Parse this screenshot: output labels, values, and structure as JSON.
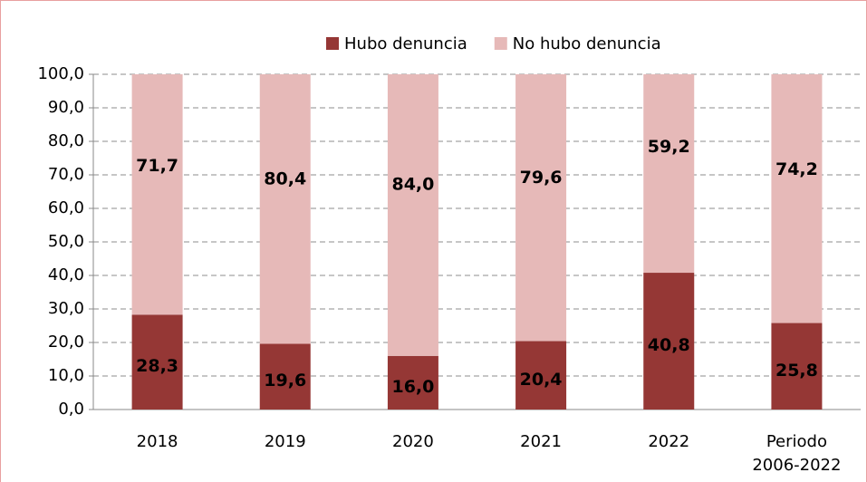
{
  "chart_data": {
    "type": "stacked_bar",
    "categories": [
      "2018",
      "2019",
      "2020",
      "2021",
      "2022",
      "Periodo 2006-2022"
    ],
    "series": [
      {
        "name": "Hubo denuncia",
        "color": "#953735",
        "values": [
          28.3,
          19.6,
          16.0,
          20.4,
          40.8,
          25.8
        ],
        "value_labels": [
          "28,3",
          "19,6",
          "16,0",
          "20,4",
          "40,8",
          "25,8"
        ],
        "label_color": "#ffffff"
      },
      {
        "name": "No hubo denuncia",
        "color": "#e6b9b8",
        "values": [
          71.7,
          80.4,
          84.0,
          79.6,
          59.2,
          74.2
        ],
        "value_labels": [
          "71,7",
          "80,4",
          "84,0",
          "79,6",
          "59,2",
          "74,2"
        ],
        "label_color": "#000000"
      }
    ],
    "ylim": [
      0,
      100
    ],
    "yticks": [
      {
        "value": 0,
        "label": "0,0"
      },
      {
        "value": 10,
        "label": "10,0"
      },
      {
        "value": 20,
        "label": "20,0"
      },
      {
        "value": 30,
        "label": "30,0"
      },
      {
        "value": 40,
        "label": "40,0"
      },
      {
        "value": 50,
        "label": "50,0"
      },
      {
        "value": 60,
        "label": "60,0"
      },
      {
        "value": 70,
        "label": "70,0"
      },
      {
        "value": 80,
        "label": "80,0"
      },
      {
        "value": 90,
        "label": "90,0"
      },
      {
        "value": 100,
        "label": "100,0"
      }
    ],
    "grid": true,
    "legend": "top"
  }
}
